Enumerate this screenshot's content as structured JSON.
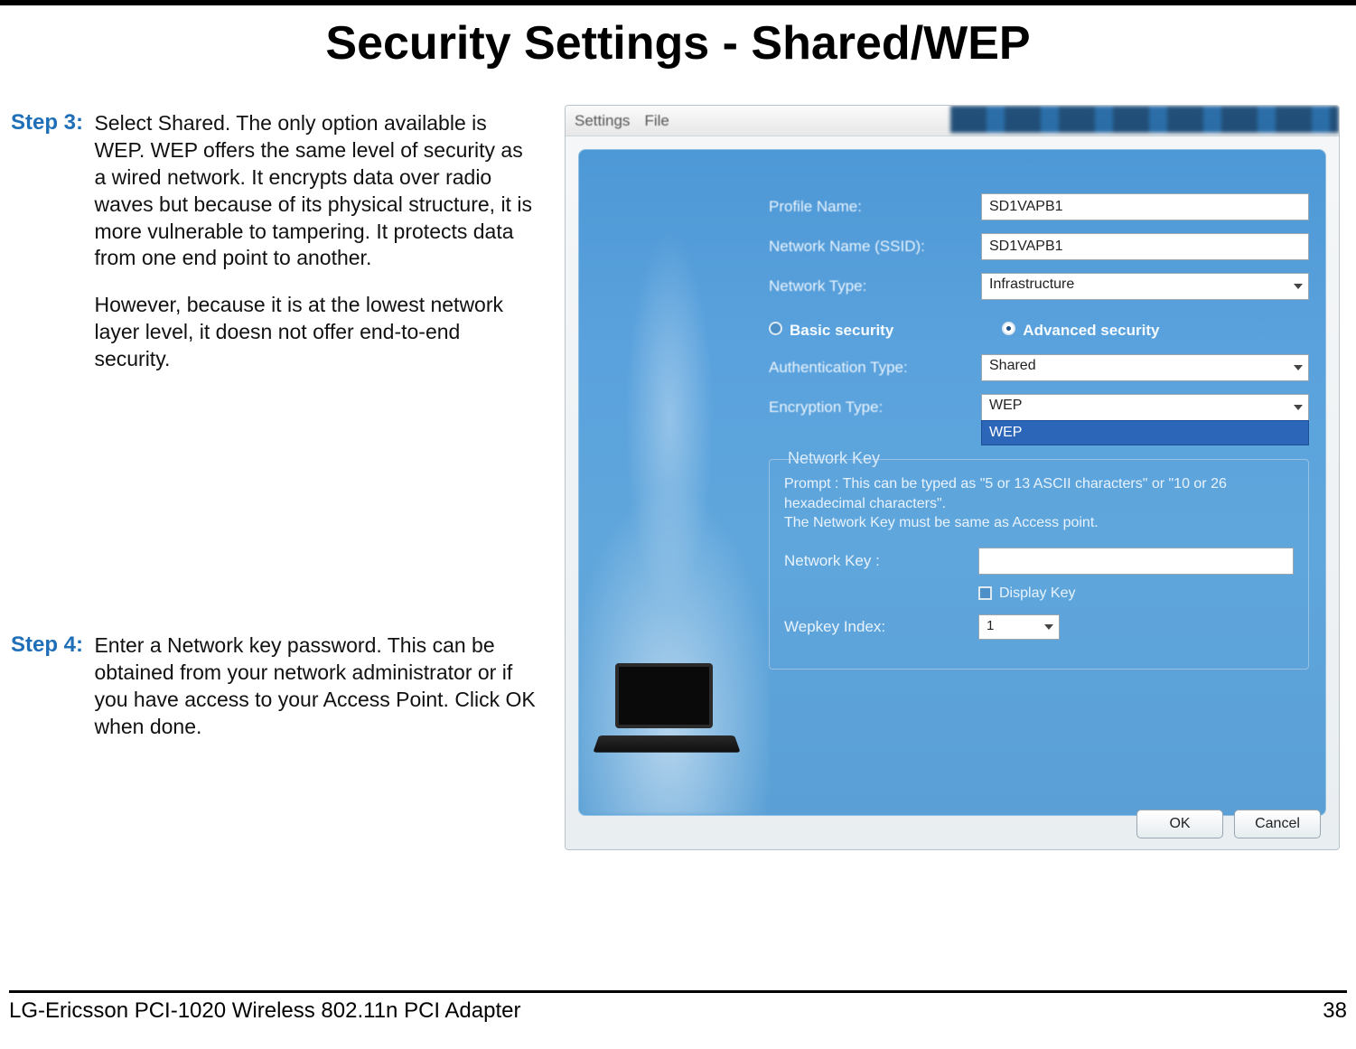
{
  "title": "Security Settings - Shared/WEP",
  "steps": {
    "s3": {
      "label": "Step 3:",
      "p1": "Select Shared. The only option available is WEP. WEP offers the same level of security as a wired network. It encrypts data over radio waves but because of its physical structure, it is more vulnerable to tampering. It protects data from one end point to another.",
      "p2": "However, because it is at the lowest network layer level, it doesn not offer end-to-end security."
    },
    "s4": {
      "label": "Step 4:",
      "p1": "Enter a Network key password. This can be obtained from your network administrator or if you have access to your Access Point. Click OK when done."
    }
  },
  "dialog": {
    "menus": {
      "settings": "Settings",
      "file": "File"
    },
    "labels": {
      "profile_name": "Profile Name:",
      "ssid": "Network Name (SSID):",
      "network_type": "Network Type:",
      "basic": "Basic security",
      "advanced": "Advanced security",
      "auth_type": "Authentication Type:",
      "enc_type": "Encryption Type:",
      "fieldset": "Network Key",
      "prompt": "Prompt : This can be typed as \"5 or 13 ASCII characters\" or \"10 or 26 hexadecimal characters\".\nThe Network Key must be same as Access point.",
      "netkey": "Network Key :",
      "display_key": "Display Key",
      "wepkey_index": "Wepkey Index:"
    },
    "values": {
      "profile_name": "SD1VAPB1",
      "ssid": "SD1VAPB1",
      "network_type": "Infrastructure",
      "auth_type": "Shared",
      "enc_type": "WEP",
      "enc_option": "WEP",
      "netkey": "",
      "wepkey_index": "1"
    },
    "buttons": {
      "ok": "OK",
      "cancel": "Cancel"
    }
  },
  "footer": {
    "product": "LG-Ericsson PCI-1020 Wireless 802.11n PCI Adapter",
    "page": "38"
  },
  "colors": {
    "accent_blue": "#1e6fb8",
    "panel_blue": "#5aa2dd",
    "dropdown_highlight": "#2b66b8"
  }
}
